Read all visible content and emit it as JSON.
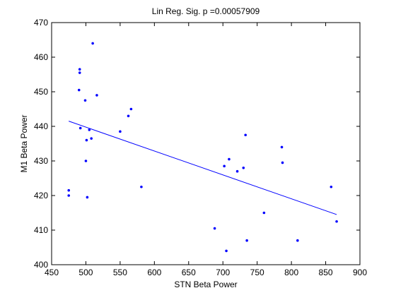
{
  "chart_data": {
    "type": "scatter",
    "title": "Lin Reg. Sig. p =0.00057909",
    "xlabel": "STN Beta Power",
    "ylabel": "M1 Beta Power",
    "xlim": [
      450,
      900
    ],
    "ylim": [
      400,
      470
    ],
    "x_ticks": [
      450,
      500,
      550,
      600,
      650,
      700,
      750,
      800,
      850,
      900
    ],
    "y_ticks": [
      400,
      410,
      420,
      430,
      440,
      450,
      460,
      470
    ],
    "grid": false,
    "legend": "none",
    "colors": {
      "points": "#0000ff",
      "fit_line": "#0000ff",
      "axes": "#000000"
    },
    "series": [
      {
        "kind": "points",
        "x": [
          475,
          475,
          490,
          491,
          491,
          492,
          499,
          500,
          501,
          502,
          505,
          508,
          510,
          516,
          550,
          562,
          566,
          581,
          688,
          702,
          705,
          709,
          721,
          730,
          733,
          735,
          760,
          786,
          787,
          809,
          858,
          866
        ],
        "y": [
          421.5,
          420,
          450.5,
          456.5,
          455.5,
          439.5,
          447.5,
          430,
          436,
          419.5,
          439,
          436.5,
          464,
          449,
          438.5,
          443,
          445,
          422.5,
          410.5,
          428.5,
          404,
          430.5,
          427,
          428,
          437.5,
          407,
          415,
          434,
          429.5,
          407,
          422.5,
          412.5
        ]
      },
      {
        "kind": "fit_line",
        "x": [
          475,
          866
        ],
        "y": [
          441.5,
          414.5
        ]
      }
    ]
  }
}
